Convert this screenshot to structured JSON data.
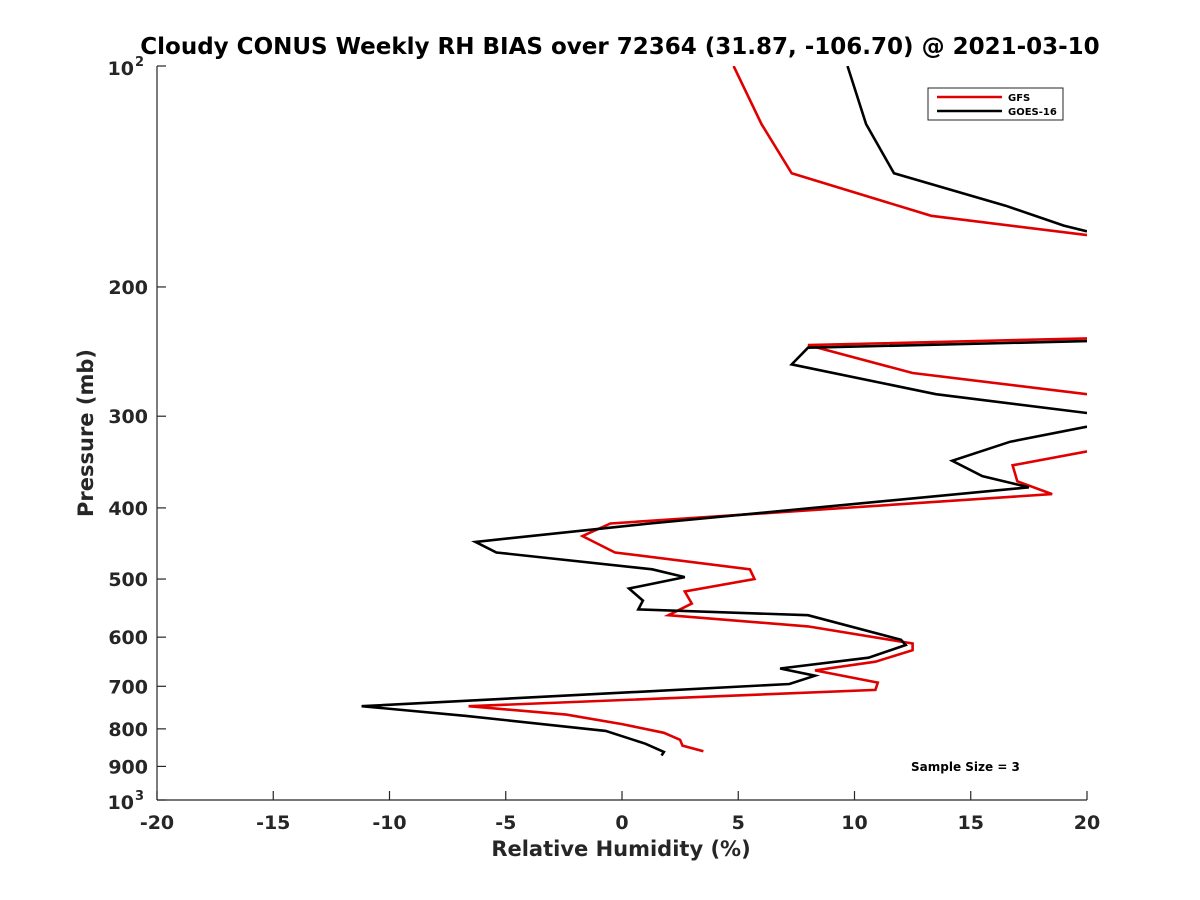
{
  "chart_data": {
    "type": "line",
    "title": "Cloudy CONUS Weekly RH BIAS over 72364 (31.87, -106.70) @ 2021-03-10",
    "xlabel": "Relative Humidity (%)",
    "ylabel": "Pressure (mb)",
    "xlim": [
      -20,
      20
    ],
    "ylim": [
      100,
      1000
    ],
    "y_scale": "log",
    "y_reversed": true,
    "grid": false,
    "legend_position": "top-right",
    "x_ticks": [
      "-20",
      "-15",
      "-10",
      "-5",
      "0",
      "5",
      "10",
      "15",
      "20"
    ],
    "y_ticks": [
      {
        "value": 100,
        "base": "10",
        "exp": "2"
      },
      {
        "value": 200,
        "label": "200"
      },
      {
        "value": 300,
        "label": "300"
      },
      {
        "value": 400,
        "label": "400"
      },
      {
        "value": 500,
        "label": "500"
      },
      {
        "value": 600,
        "label": "600"
      },
      {
        "value": 700,
        "label": "700"
      },
      {
        "value": 800,
        "label": "800"
      },
      {
        "value": 900,
        "label": "900"
      },
      {
        "value": 1000,
        "base": "10",
        "exp": "3"
      }
    ],
    "annotation": "Sample Size = 3",
    "series": [
      {
        "name": "GFS",
        "color": "#e00000",
        "x": [
          4.8,
          6.0,
          7.3,
          13.3,
          20.0,
          null,
          20.0,
          8.0,
          12.5,
          20.0,
          null,
          20.0,
          16.8,
          17.0,
          18.5,
          -0.5,
          -1.7,
          -0.3,
          5.5,
          5.7,
          2.7,
          3.0,
          2.0,
          8.0,
          12.5,
          12.5,
          10.9,
          8.3,
          11.0,
          10.9,
          -6.6,
          -2.4,
          0.0,
          1.8,
          2.5,
          2.6,
          3.5
        ],
        "y": [
          100,
          120,
          140,
          160,
          170,
          null,
          235,
          240,
          262,
          280,
          null,
          335,
          350,
          368,
          383,
          420,
          437,
          460,
          485,
          500,
          520,
          540,
          560,
          580,
          612,
          625,
          648,
          666,
          692,
          708,
          745,
          765,
          788,
          810,
          828,
          843,
          858
        ]
      },
      {
        "name": "GOES-16",
        "color": "#000000",
        "x": [
          9.7,
          10.5,
          11.7,
          16.5,
          19.0,
          20.0,
          null,
          20.0,
          8.0,
          7.3,
          13.5,
          20.0,
          null,
          20.0,
          16.7,
          14.2,
          15.5,
          17.5,
          1.2,
          -6.3,
          -5.4,
          1.3,
          2.7,
          0.3,
          0.9,
          0.7,
          8.0,
          12.0,
          12.2,
          10.6,
          6.8,
          8.3,
          7.2,
          -11.2,
          -6.7,
          -0.7,
          1.0,
          1.8,
          1.7
        ],
        "y": [
          100,
          120,
          140,
          155,
          165,
          168,
          null,
          237,
          242,
          255,
          280,
          297,
          null,
          310,
          325,
          345,
          362,
          375,
          420,
          445,
          460,
          485,
          497,
          515,
          535,
          550,
          560,
          605,
          615,
          640,
          662,
          677,
          695,
          745,
          768,
          805,
          838,
          860,
          870
        ]
      }
    ]
  }
}
